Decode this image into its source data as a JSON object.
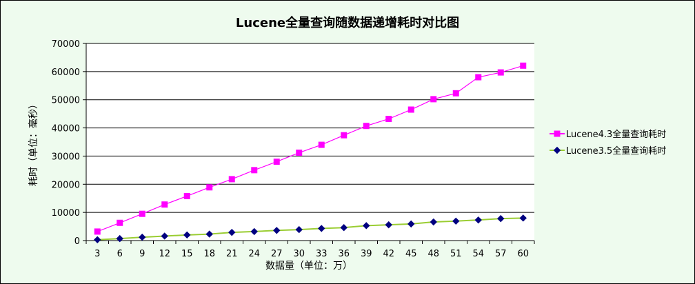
{
  "chart_data": {
    "type": "line",
    "title": "Lucene全量查询随数据递增耗时对比图",
    "xlabel": "数据量（单位：万）",
    "ylabel": "耗时（单位：毫秒）",
    "ylim": [
      0,
      70000
    ],
    "yticks": [
      "0",
      "10000",
      "20000",
      "30000",
      "40000",
      "50000",
      "60000",
      "70000"
    ],
    "grid": "horizontal",
    "legend_position": "right",
    "x": [
      "3",
      "6",
      "9",
      "12",
      "15",
      "18",
      "21",
      "24",
      "27",
      "30",
      "33",
      "36",
      "39",
      "42",
      "45",
      "48",
      "51",
      "54",
      "57",
      "60"
    ],
    "series": [
      {
        "name": "Lucene4.3全量查询耗时",
        "color": "#ff00ff",
        "marker": "square",
        "values": [
          3200,
          6300,
          9500,
          12800,
          15800,
          18900,
          21800,
          25000,
          28000,
          31200,
          34000,
          37400,
          40700,
          43200,
          46500,
          50200,
          52300,
          58000,
          59700,
          62100
        ]
      },
      {
        "name": "Lucene3.5全量查询耗时",
        "color": "#9acd32",
        "marker_color": "#000080",
        "marker": "diamond",
        "values": [
          300,
          700,
          1200,
          1600,
          2000,
          2300,
          2900,
          3200,
          3600,
          3900,
          4300,
          4600,
          5300,
          5600,
          5900,
          6600,
          6900,
          7300,
          7800,
          8000
        ]
      }
    ]
  }
}
